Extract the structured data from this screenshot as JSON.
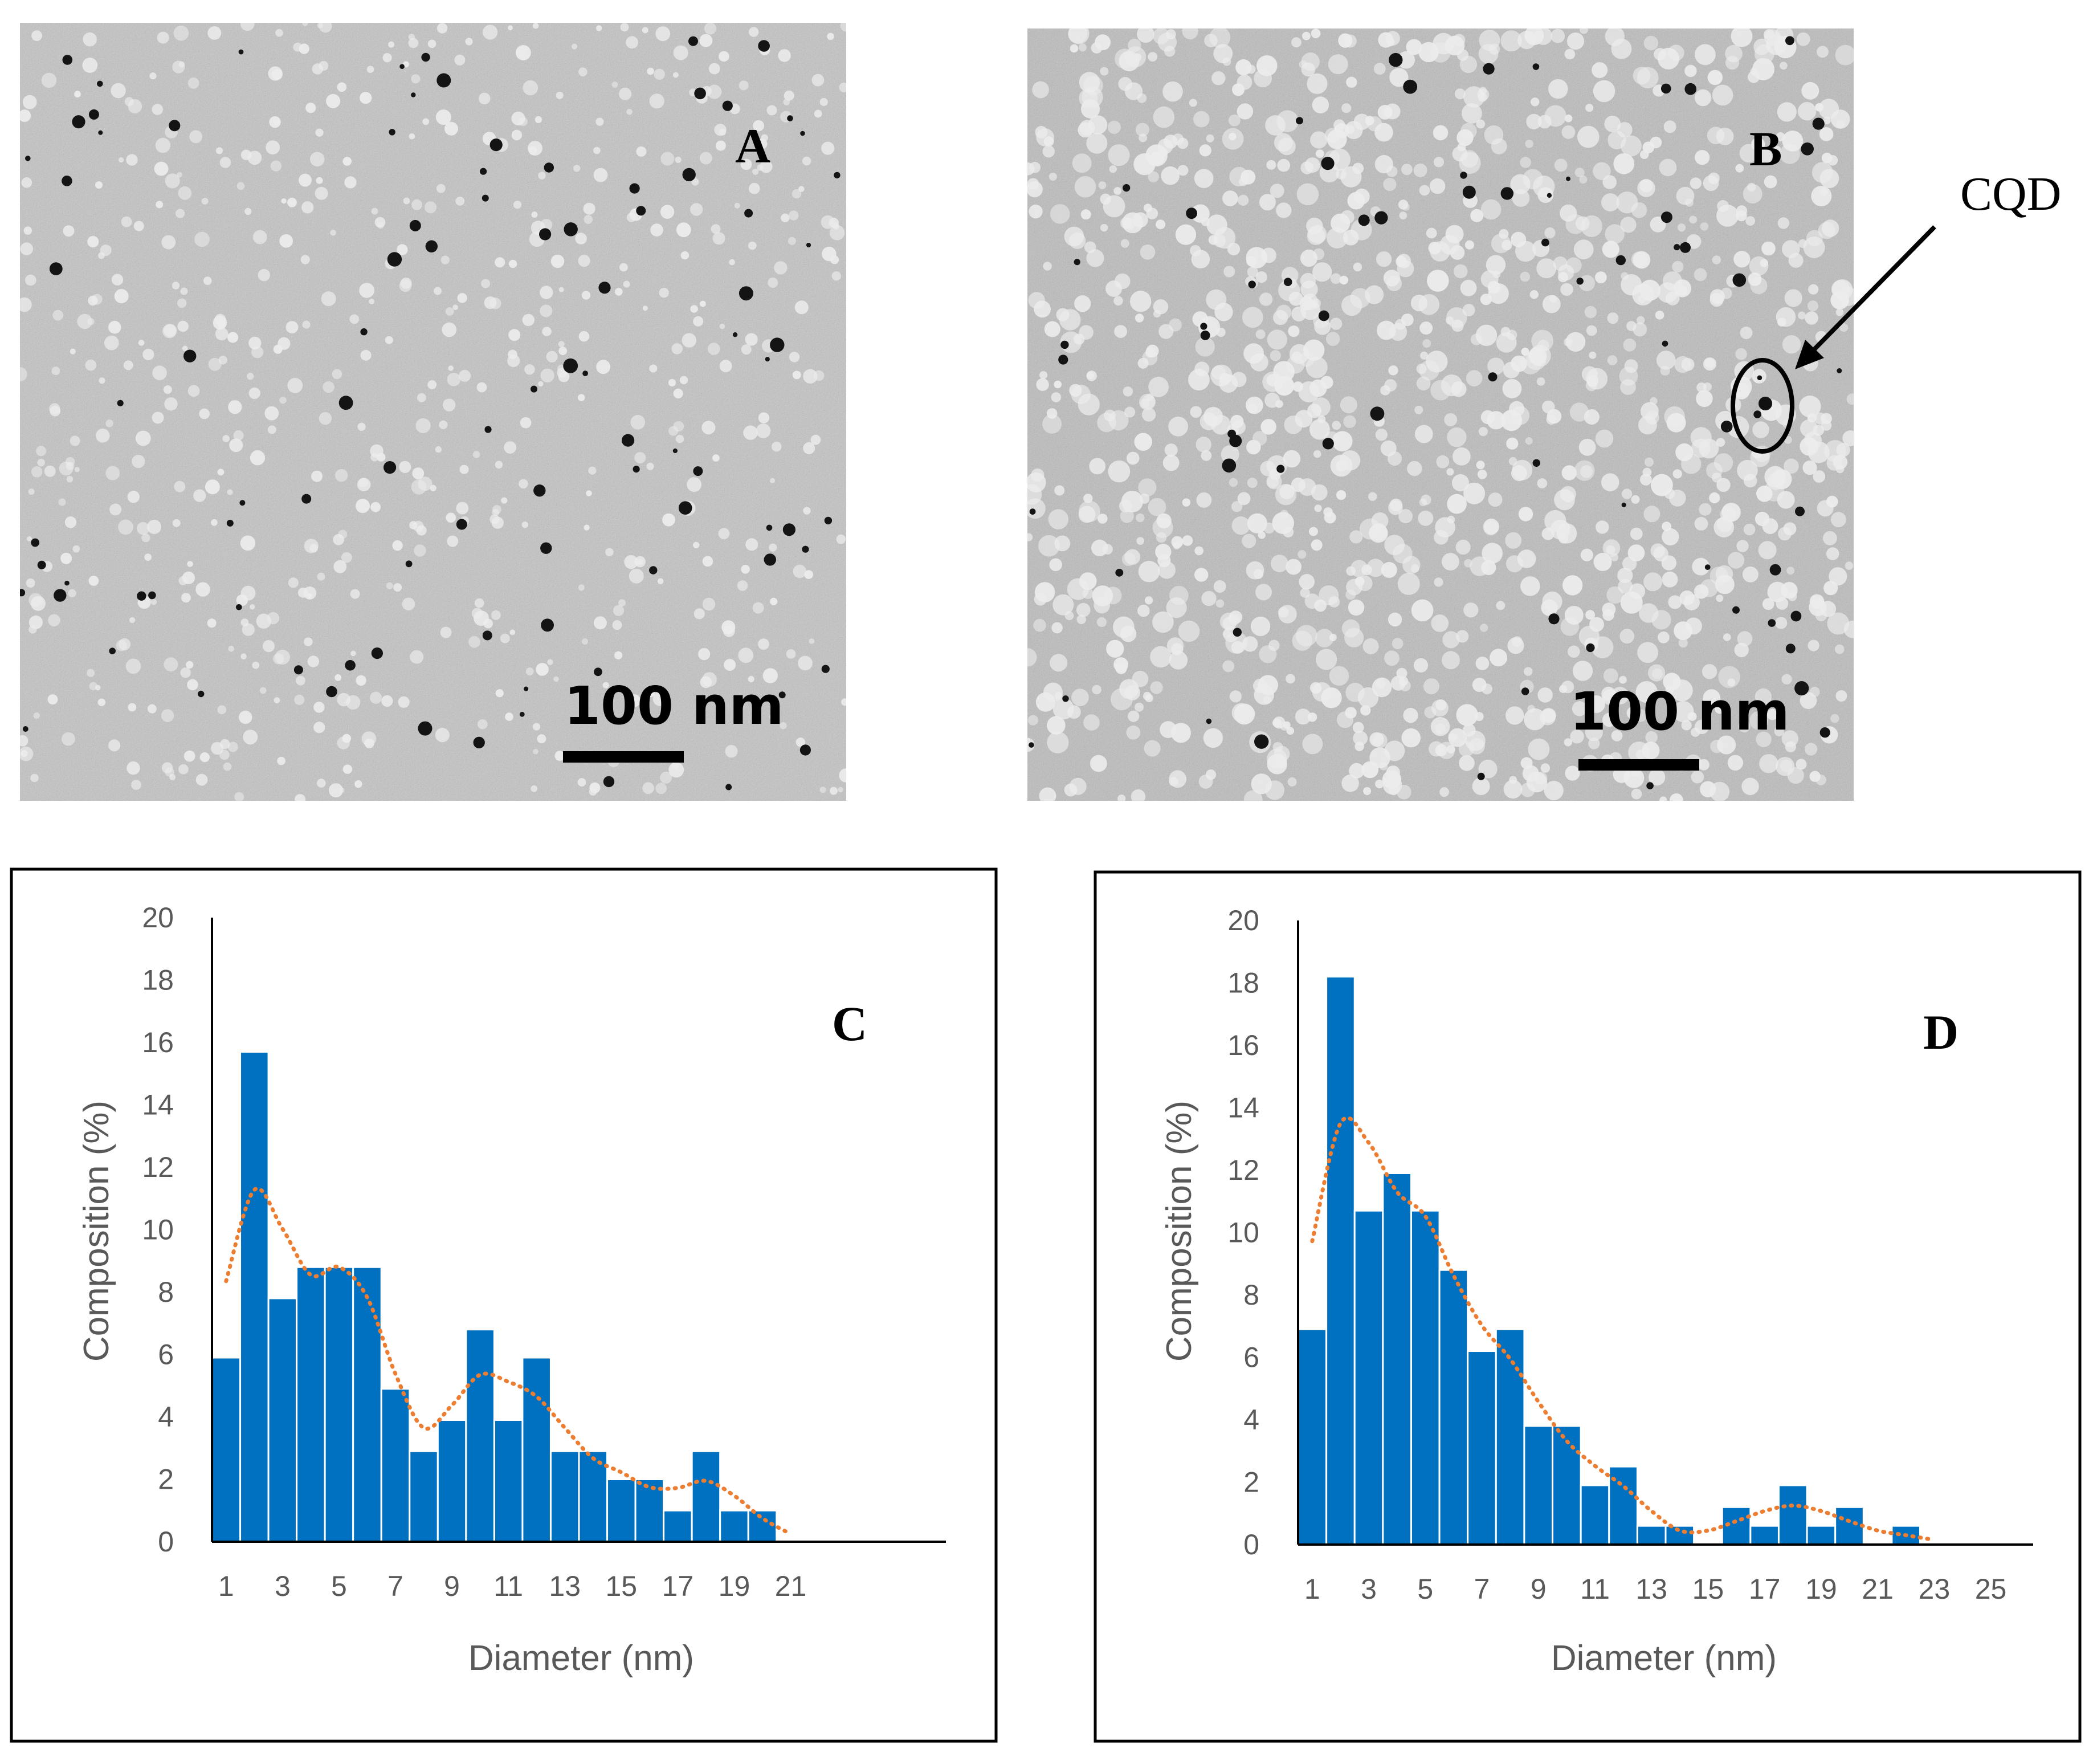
{
  "panels": {
    "A": {
      "letter": "A",
      "scale_label": "100 nm"
    },
    "B": {
      "letter": "B",
      "scale_label": "100 nm",
      "annotation": "CQD"
    }
  },
  "chart_data": [
    {
      "type": "bar",
      "panel": "C",
      "x": [
        1,
        2,
        3,
        4,
        5,
        6,
        7,
        8,
        9,
        10,
        11,
        12,
        13,
        14,
        15,
        16,
        17,
        18,
        19,
        20,
        21
      ],
      "values": [
        5.9,
        15.7,
        7.8,
        8.8,
        8.8,
        8.8,
        4.9,
        2.9,
        3.9,
        6.8,
        3.9,
        5.9,
        2.9,
        2.9,
        2.0,
        2.0,
        1.0,
        2.9,
        1.0,
        1.0,
        0
      ],
      "trendline": {
        "type": "moving-average",
        "style": "dotted",
        "color": "#ED7D31"
      },
      "xlabel": "Diameter (nm)",
      "ylabel": "Composition (%)",
      "xticks": [
        "1",
        "3",
        "5",
        "7",
        "9",
        "11",
        "13",
        "15",
        "17",
        "19",
        "21"
      ],
      "yticks": [
        "0",
        "2",
        "4",
        "6",
        "8",
        "10",
        "12",
        "14",
        "16",
        "18",
        "20"
      ],
      "ylim": [
        0,
        20
      ],
      "xlim": [
        0.5,
        26.5
      ],
      "bar_color": "#0070C0",
      "grid": false
    },
    {
      "type": "bar",
      "panel": "D",
      "x": [
        1,
        2,
        3,
        4,
        5,
        6,
        7,
        8,
        9,
        10,
        11,
        12,
        13,
        14,
        15,
        16,
        17,
        18,
        19,
        20,
        21,
        22,
        23,
        24,
        25
      ],
      "values": [
        6.9,
        18.2,
        10.7,
        11.9,
        10.7,
        8.8,
        6.2,
        6.9,
        3.8,
        3.8,
        1.9,
        2.5,
        0.6,
        0.6,
        0,
        1.2,
        0.6,
        1.9,
        0.6,
        1.2,
        0,
        0.6,
        0,
        0,
        0
      ],
      "trendline": {
        "type": "moving-average",
        "style": "dotted",
        "color": "#ED7D31"
      },
      "xlabel": "Diameter (nm)",
      "ylabel": "Composition (%)",
      "xticks": [
        "1",
        "3",
        "5",
        "7",
        "9",
        "11",
        "13",
        "15",
        "17",
        "19",
        "21",
        "23",
        "25"
      ],
      "yticks": [
        "0",
        "2",
        "4",
        "6",
        "8",
        "10",
        "12",
        "14",
        "16",
        "18",
        "20"
      ],
      "ylim": [
        0,
        20
      ],
      "xlim": [
        0.5,
        26.5
      ],
      "bar_color": "#0070C0",
      "grid": false
    }
  ]
}
